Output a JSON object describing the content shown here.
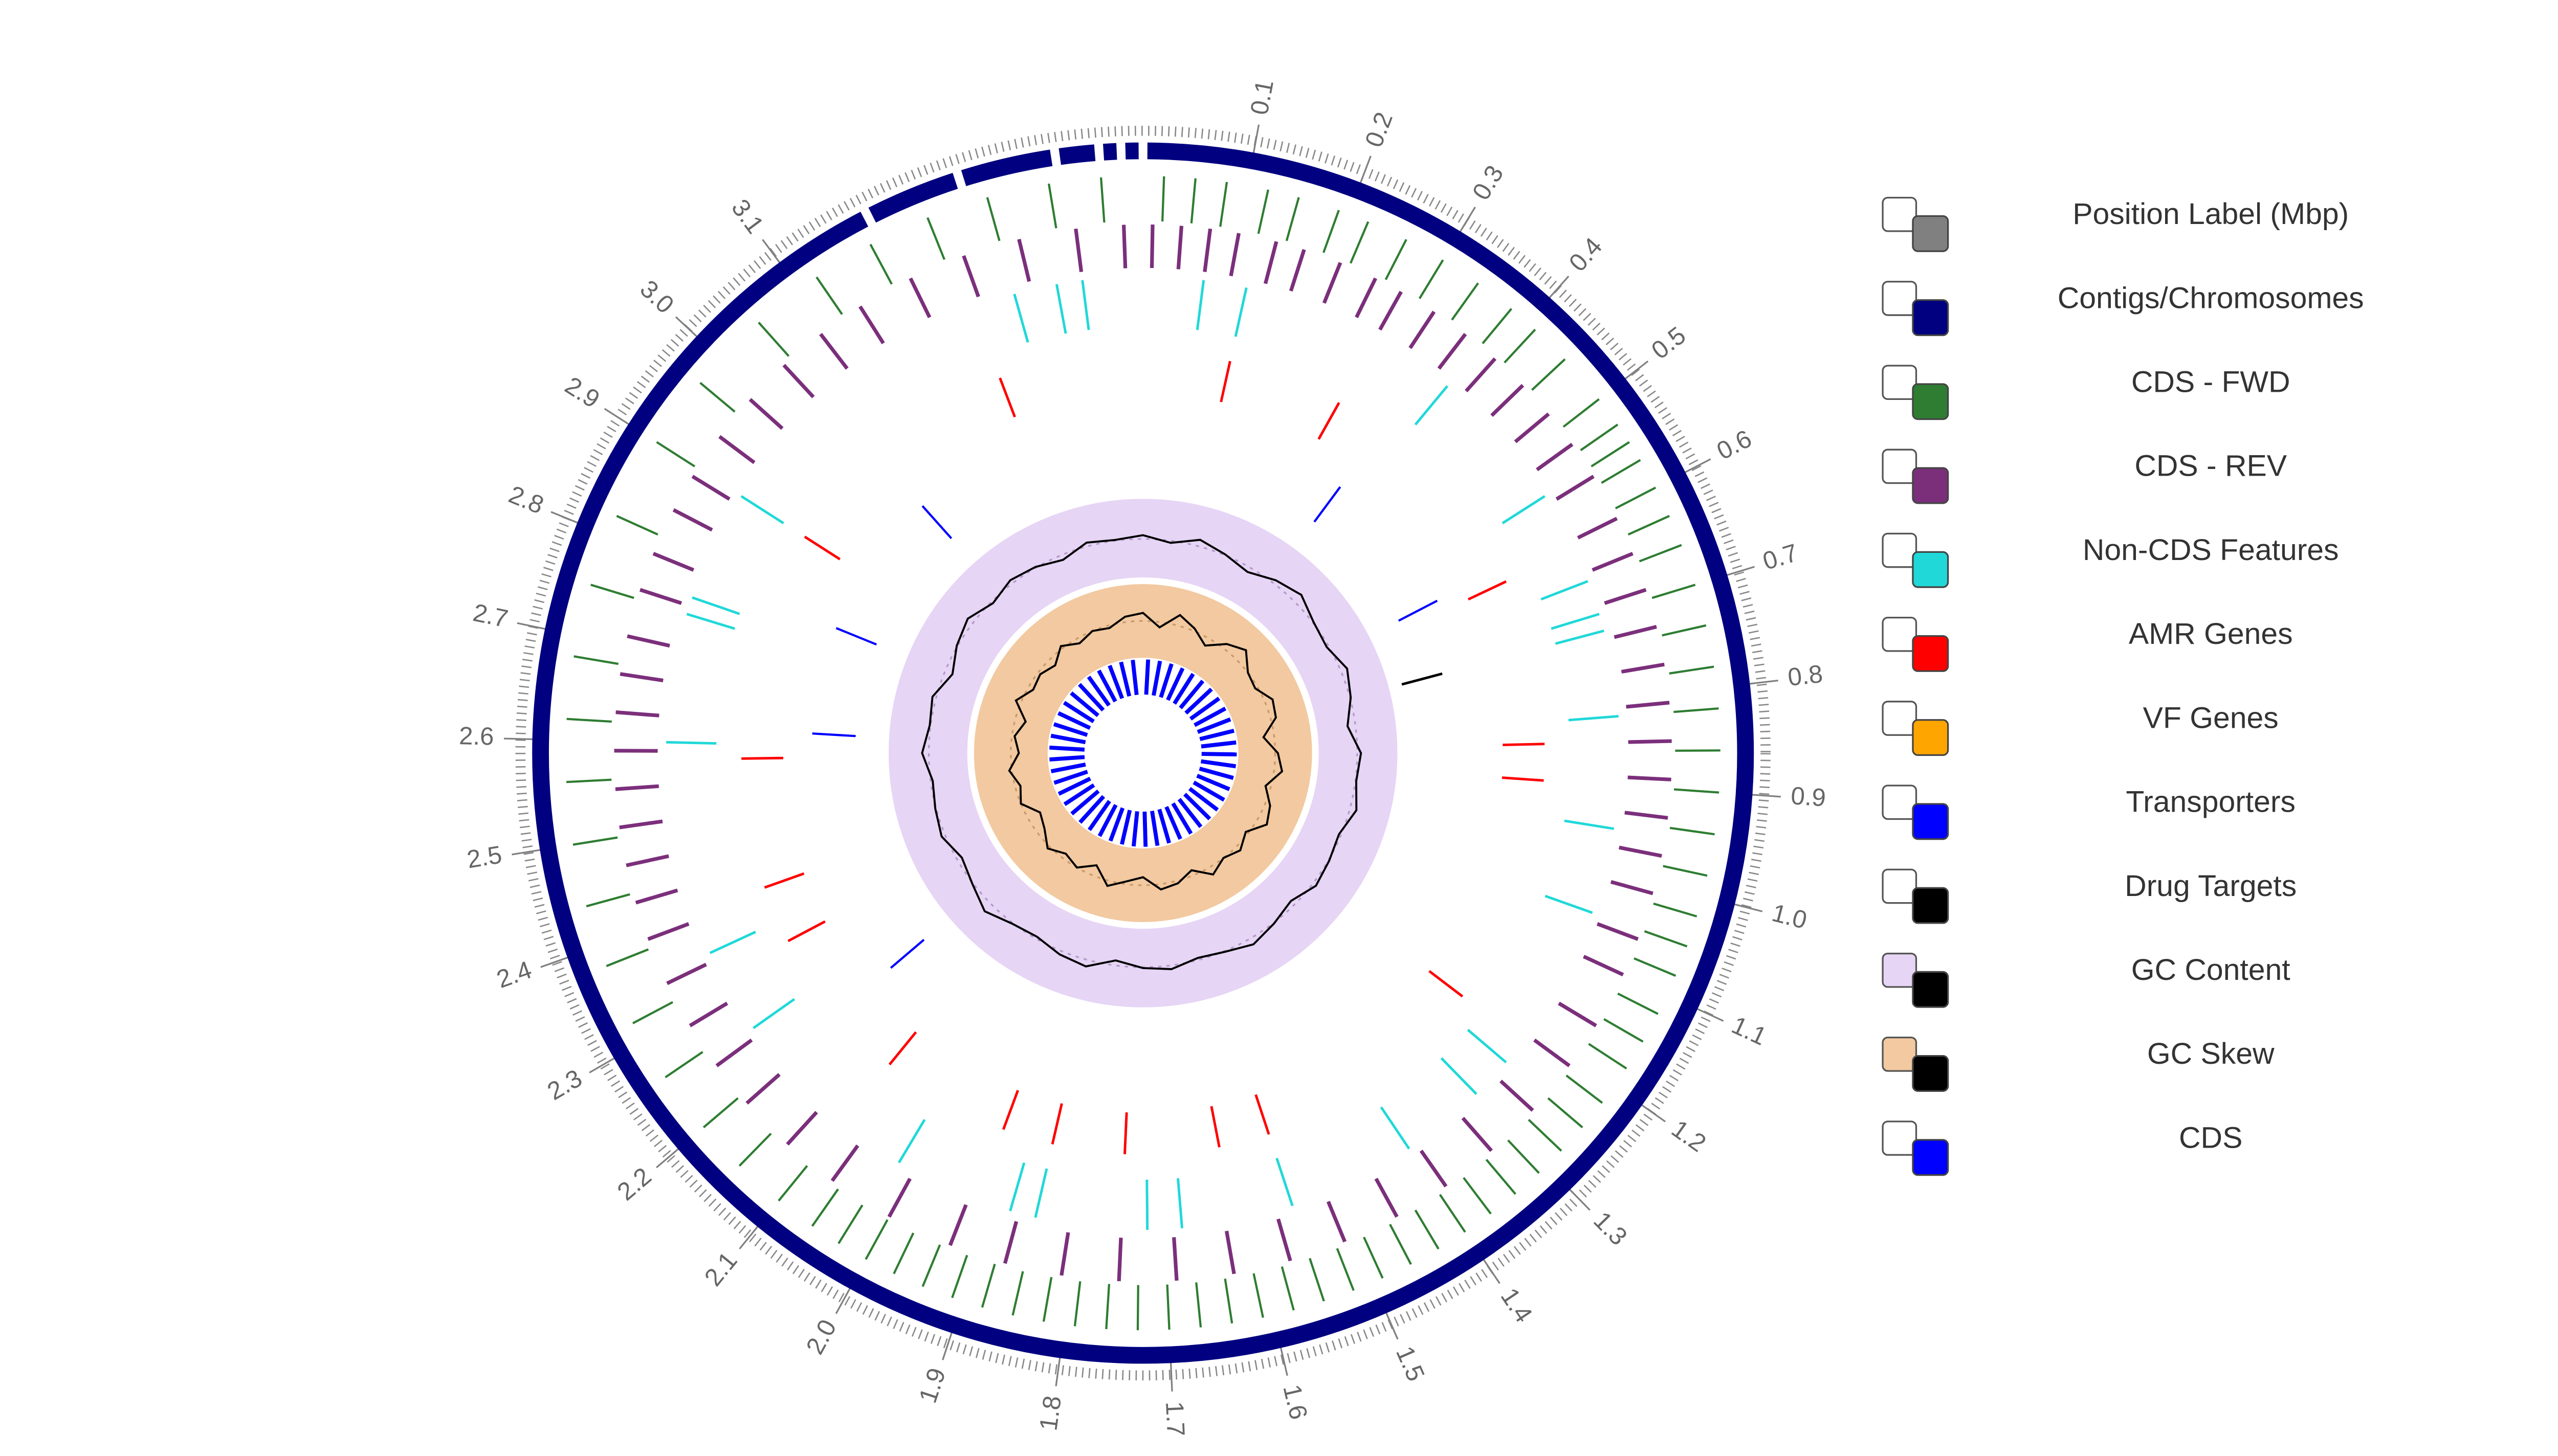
{
  "chart_data": {
    "type": "circular-genome",
    "xlim": [
      0,
      3.45
    ],
    "xticks": [
      0.1,
      0.2,
      0.3,
      0.4,
      0.5,
      0.6,
      0.7,
      0.8,
      0.9,
      {
        "value": 1,
        "label": "1.0"
      },
      1.1,
      1.2,
      1.3,
      1.4,
      1.5,
      1.6,
      1.7,
      1.8,
      1.9,
      {
        "value": 2,
        "label": "2.0"
      },
      2.1,
      2.2,
      2.3,
      2.4,
      2.5,
      2.6,
      2.7,
      2.8,
      2.9,
      {
        "value": 3,
        "label": "3.0"
      },
      3.1
    ],
    "tracks": [
      {
        "name": "Position Label (Mbp)",
        "color": "#808080",
        "style": "labels"
      },
      {
        "name": "Contigs/Chromosomes",
        "color": "#000080",
        "style": "ring",
        "positions": [
          0,
          3.19,
          3.28,
          3.37,
          3.41,
          3.43
        ]
      },
      {
        "name": "CDS - FWD",
        "color": "#2e7d32",
        "style": "features",
        "positions": [
          0.02,
          0.05,
          0.08,
          0.12,
          0.15,
          0.19,
          0.22,
          0.26,
          0.3,
          0.34,
          0.38,
          0.41,
          0.45,
          0.5,
          0.53,
          0.55,
          0.57,
          0.6,
          0.63,
          0.66,
          0.7,
          0.74,
          0.78,
          0.82,
          0.86,
          0.9,
          0.94,
          0.98,
          1.02,
          1.05,
          1.08,
          1.12,
          1.15,
          1.18,
          1.22,
          1.25,
          1.28,
          1.31,
          1.34,
          1.37,
          1.4,
          1.43,
          1.46,
          1.49,
          1.52,
          1.55,
          1.58,
          1.61,
          1.64,
          1.67,
          1.7,
          1.73,
          1.76,
          1.79,
          1.82,
          1.85,
          1.88,
          1.91,
          1.94,
          1.97,
          2.0,
          2.03,
          2.06,
          2.1,
          2.15,
          2.2,
          2.26,
          2.32,
          2.38,
          2.44,
          2.5,
          2.56,
          2.62,
          2.68,
          2.75,
          2.82,
          2.9,
          2.97,
          3.05,
          3.12,
          3.18,
          3.24,
          3.3,
          3.36,
          3.41
        ]
      },
      {
        "name": "CDS - REV",
        "color": "#7b2f7b",
        "style": "features",
        "positions": [
          0.01,
          0.04,
          0.07,
          0.1,
          0.14,
          0.17,
          0.21,
          0.25,
          0.28,
          0.32,
          0.36,
          0.4,
          0.44,
          0.48,
          0.52,
          0.56,
          0.61,
          0.65,
          0.69,
          0.73,
          0.77,
          0.81,
          0.85,
          0.89,
          0.93,
          0.97,
          1.01,
          1.06,
          1.1,
          1.16,
          1.21,
          1.27,
          1.33,
          1.39,
          1.45,
          1.51,
          1.57,
          1.63,
          1.69,
          1.75,
          1.81,
          1.87,
          1.93,
          2.0,
          2.07,
          2.13,
          2.19,
          2.24,
          2.29,
          2.34,
          2.39,
          2.43,
          2.47,
          2.51,
          2.55,
          2.59,
          2.63,
          2.67,
          2.71,
          2.76,
          2.8,
          2.85,
          2.89,
          2.94,
          2.99,
          3.04,
          3.09,
          3.14,
          3.2,
          3.26,
          3.32,
          3.38,
          3.43
        ]
      },
      {
        "name": "Non-CDS Features",
        "color": "#20d8d8",
        "style": "features",
        "positions": [
          0.07,
          0.12,
          0.38,
          0.55,
          0.66,
          0.7,
          0.72,
          0.82,
          0.95,
          1.05,
          1.25,
          1.3,
          1.4,
          1.55,
          1.68,
          1.72,
          1.85,
          1.88,
          2.02,
          2.25,
          2.35,
          2.6,
          2.75,
          2.77,
          2.9,
          3.3,
          3.35,
          3.38
        ]
      },
      {
        "name": "AMR Genes",
        "color": "#ff0000",
        "style": "features",
        "positions": [
          0.12,
          0.28,
          0.62,
          0.85,
          0.9,
          1.22,
          1.55,
          1.62,
          1.75,
          1.85,
          1.92,
          2.1,
          2.32,
          2.4,
          2.58,
          2.9,
          3.25
        ]
      },
      {
        "name": "VF Genes",
        "color": "#ffa500",
        "style": "features"
      },
      {
        "name": "Transporters",
        "color": "#0000ff",
        "style": "features",
        "positions": [
          0.35,
          0.6,
          2.2,
          2.62,
          2.8,
          3.05
        ]
      },
      {
        "name": "Drug Targets",
        "color": "#000000",
        "style": "features",
        "positions": [
          0.72
        ]
      },
      {
        "name": "GC Content",
        "color": "#000000",
        "background": "#e6d5f5",
        "style": "line",
        "ylim": [
          0.4,
          0.6
        ],
        "values": [
          0.51,
          0.49,
          0.52,
          0.5,
          0.48,
          0.51,
          0.53,
          0.5,
          0.49,
          0.52,
          0.5,
          0.47,
          0.51,
          0.5,
          0.52,
          0.49,
          0.5,
          0.51,
          0.48,
          0.5,
          0.52,
          0.5,
          0.49,
          0.51,
          0.5,
          0.48,
          0.52,
          0.51,
          0.49,
          0.5,
          0.53,
          0.5,
          0.48,
          0.51,
          0.5,
          0.49,
          0.52,
          0.5,
          0.51,
          0.47,
          0.5,
          0.52,
          0.49,
          0.51,
          0.5,
          0.48,
          0.51,
          0.5
        ]
      },
      {
        "name": "GC Skew",
        "color": "#000000",
        "background": "#f2c9a0",
        "style": "line",
        "ylim": [
          -0.1,
          0.1
        ],
        "values": [
          0.03,
          -0.02,
          0.04,
          0.01,
          -0.03,
          0.02,
          0.05,
          0.0,
          -0.01,
          0.03,
          0.02,
          -0.04,
          0.01,
          0.03,
          -0.02,
          0.02,
          0.04,
          -0.01,
          0.02,
          0.0,
          0.03,
          -0.02,
          0.01,
          0.02,
          -0.03,
          -0.01,
          0.02,
          -0.04,
          0.0,
          -0.02,
          0.01,
          -0.03,
          -0.05,
          0.0,
          -0.02,
          0.01,
          -0.03,
          -0.01,
          -0.04,
          0.02,
          -0.02,
          -0.01,
          -0.03,
          0.01,
          -0.02,
          0.0,
          -0.01,
          0.02
        ]
      },
      {
        "name": "CDS",
        "color": "#0000ff",
        "style": "features",
        "positions": [
          0.03,
          0.1,
          0.17,
          0.24,
          0.31,
          0.38,
          0.45,
          0.52,
          0.59,
          0.66,
          0.73,
          0.8,
          0.87,
          0.94,
          1.01,
          1.08,
          1.15,
          1.22,
          1.29,
          1.36,
          1.43,
          1.5,
          1.57,
          1.64,
          1.71,
          1.78,
          1.85,
          1.92,
          1.99,
          2.06,
          2.13,
          2.2,
          2.27,
          2.34,
          2.41,
          2.48,
          2.55,
          2.62,
          2.69,
          2.76,
          2.83,
          2.9,
          2.97,
          3.04,
          3.11,
          3.18,
          3.25,
          3.32,
          3.39
        ]
      }
    ]
  }
}
